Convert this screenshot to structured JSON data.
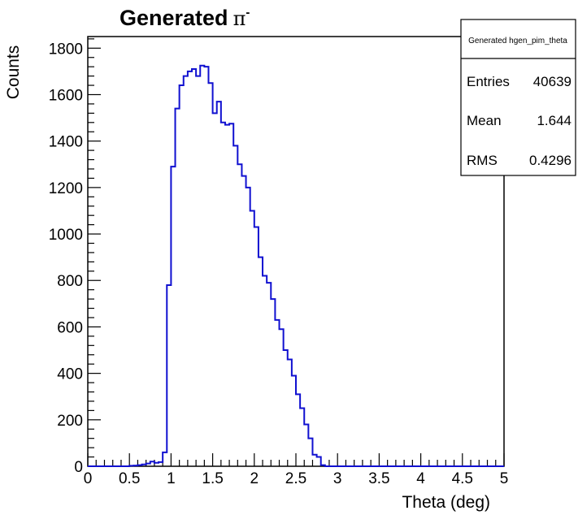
{
  "chart_data": {
    "type": "histogram",
    "title": "Generated",
    "title_symbol": "π",
    "title_superscript": "-",
    "xlabel": "Theta (deg)",
    "ylabel": "Counts",
    "xlim": [
      0,
      5
    ],
    "ylim": [
      0,
      1850
    ],
    "xticks": [
      "0",
      "0.5",
      "1",
      "1.5",
      "2",
      "2.5",
      "3",
      "3.5",
      "4",
      "4.5",
      "5"
    ],
    "yticks": [
      "0",
      "200",
      "400",
      "600",
      "800",
      "1000",
      "1200",
      "1400",
      "1600",
      "1800"
    ],
    "bin_width": 0.05,
    "line_color": "#1010d0",
    "grid": false,
    "values": [
      0,
      0,
      0,
      0,
      0,
      0,
      0,
      0,
      0,
      0,
      2,
      3,
      5,
      8,
      12,
      20,
      15,
      18,
      60,
      780,
      1290,
      1540,
      1640,
      1680,
      1700,
      1710,
      1680,
      1725,
      1720,
      1650,
      1520,
      1570,
      1480,
      1470,
      1475,
      1380,
      1300,
      1250,
      1200,
      1100,
      1030,
      900,
      820,
      790,
      720,
      630,
      590,
      500,
      460,
      390,
      310,
      250,
      180,
      120,
      50,
      40,
      5,
      0,
      0,
      0,
      0,
      0,
      0,
      0,
      0,
      0,
      0,
      0,
      0,
      0,
      0,
      0,
      0,
      0,
      0,
      0,
      0,
      0,
      0,
      0,
      0,
      0,
      0,
      0,
      0,
      0,
      0,
      0,
      0,
      0,
      0,
      0,
      0,
      0,
      0,
      0,
      0,
      0,
      0,
      0
    ],
    "stats_box": {
      "name": "Generated hgen_pim_theta",
      "rows": [
        {
          "label": "Entries",
          "value": "40639"
        },
        {
          "label": "Mean",
          "value": "1.644"
        },
        {
          "label": "RMS",
          "value": "0.4296"
        }
      ]
    }
  }
}
